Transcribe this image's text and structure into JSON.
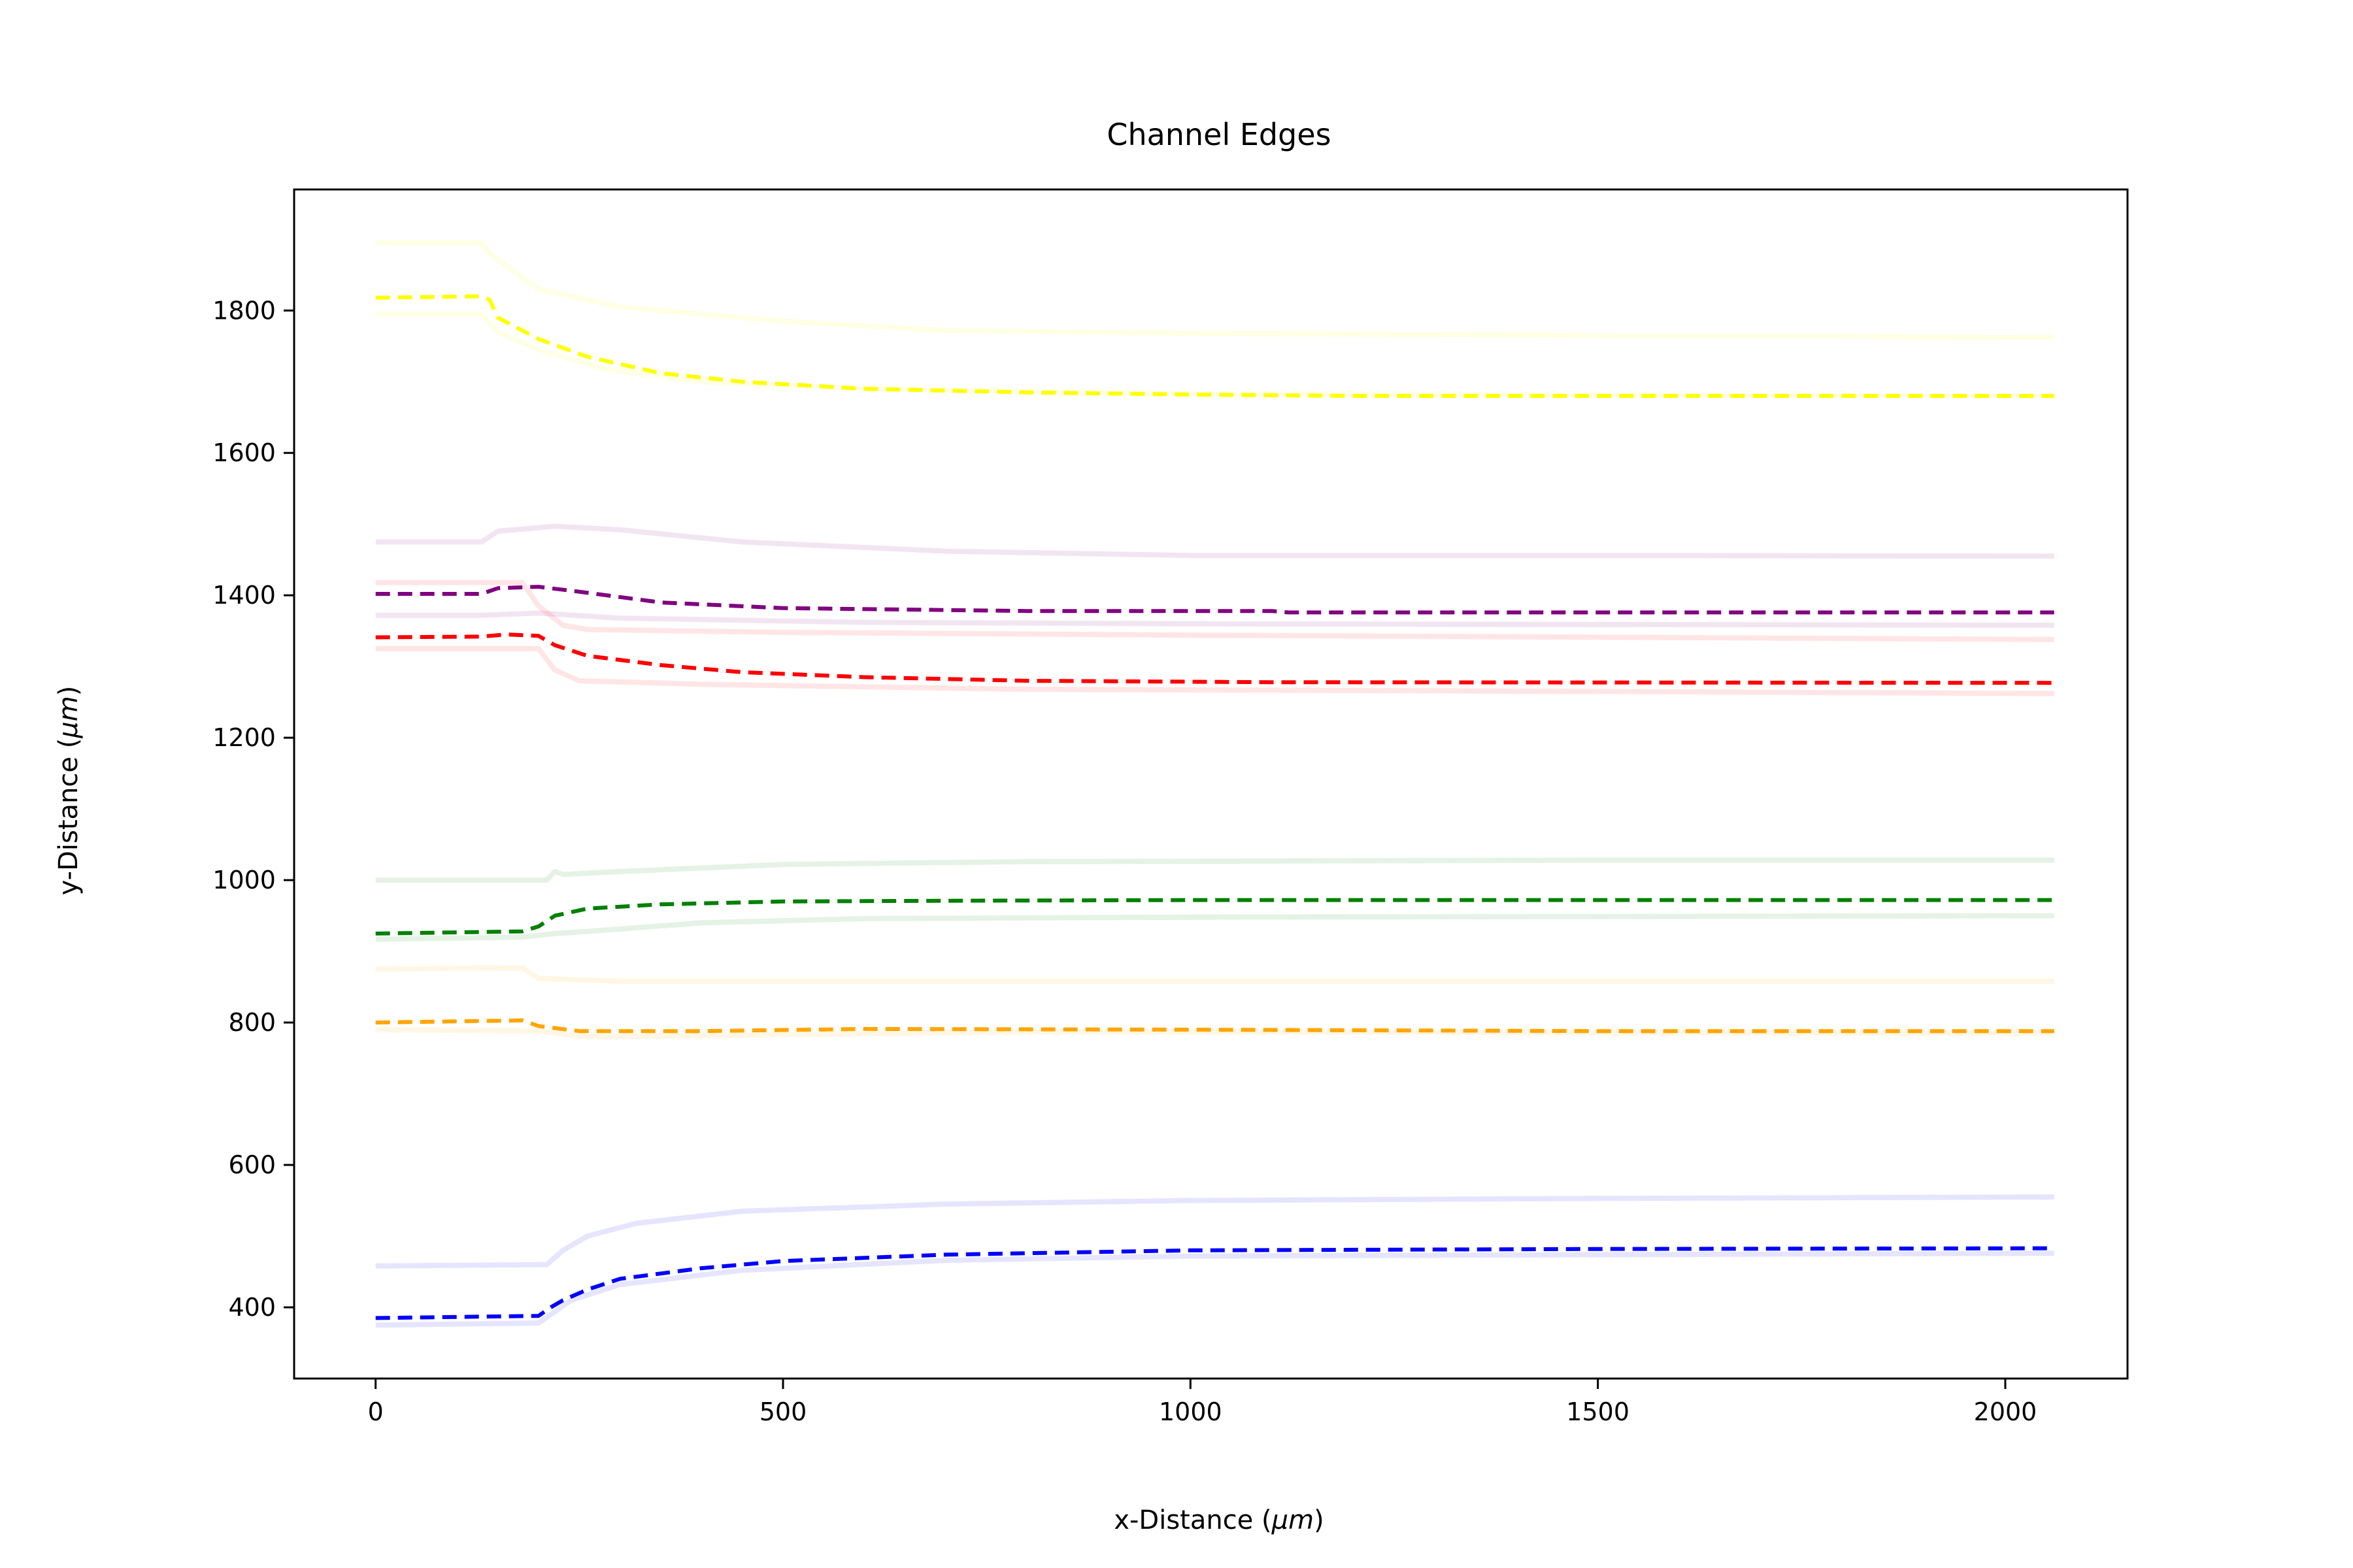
{
  "chart_data": {
    "type": "line",
    "title": "Channel Edges",
    "xlabel": {
      "prefix": "x-Distance (",
      "unit": "μm",
      "suffix": ")"
    },
    "ylabel": {
      "prefix": "y-Distance (",
      "unit": "μm",
      "suffix": ")"
    },
    "xlim": [
      -100,
      2150
    ],
    "ylim": [
      300,
      1970
    ],
    "xticks": [
      0,
      500,
      1000,
      1500,
      2000
    ],
    "yticks": [
      400,
      600,
      800,
      1000,
      1200,
      1400,
      1600,
      1800
    ],
    "grid": false,
    "legend": "none",
    "series": [
      {
        "color": "#ffff00",
        "center": [
          [
            0,
            1818
          ],
          [
            130,
            1820
          ],
          [
            140,
            1815
          ],
          [
            150,
            1790
          ],
          [
            200,
            1760
          ],
          [
            260,
            1735
          ],
          [
            350,
            1712
          ],
          [
            450,
            1700
          ],
          [
            600,
            1690
          ],
          [
            800,
            1685
          ],
          [
            1000,
            1682
          ],
          [
            1200,
            1680
          ],
          [
            1500,
            1680
          ],
          [
            2060,
            1680
          ]
        ],
        "upper": [
          [
            0,
            1895
          ],
          [
            130,
            1895
          ],
          [
            140,
            1880
          ],
          [
            200,
            1830
          ],
          [
            300,
            1805
          ],
          [
            500,
            1785
          ],
          [
            700,
            1772
          ],
          [
            1000,
            1768
          ],
          [
            1500,
            1765
          ],
          [
            2060,
            1762
          ]
        ],
        "lower": [
          [
            0,
            1795
          ],
          [
            130,
            1795
          ],
          [
            150,
            1770
          ],
          [
            200,
            1745
          ],
          [
            280,
            1718
          ],
          [
            400,
            1700
          ],
          [
            600,
            1690
          ],
          [
            1000,
            1683
          ],
          [
            2060,
            1680
          ]
        ]
      },
      {
        "color": "#800080",
        "center": [
          [
            0,
            1402
          ],
          [
            130,
            1402
          ],
          [
            150,
            1410
          ],
          [
            200,
            1412
          ],
          [
            250,
            1405
          ],
          [
            350,
            1390
          ],
          [
            500,
            1382
          ],
          [
            800,
            1378
          ],
          [
            1100,
            1378
          ],
          [
            1120,
            1376
          ],
          [
            2060,
            1376
          ]
        ],
        "upper": [
          [
            0,
            1475
          ],
          [
            130,
            1475
          ],
          [
            150,
            1490
          ],
          [
            220,
            1497
          ],
          [
            300,
            1492
          ],
          [
            450,
            1475
          ],
          [
            700,
            1462
          ],
          [
            1000,
            1456
          ],
          [
            1500,
            1456
          ],
          [
            2060,
            1455
          ]
        ],
        "lower": [
          [
            0,
            1372
          ],
          [
            130,
            1372
          ],
          [
            200,
            1375
          ],
          [
            300,
            1368
          ],
          [
            600,
            1362
          ],
          [
            1000,
            1360
          ],
          [
            2060,
            1358
          ]
        ]
      },
      {
        "color": "#ff0000",
        "center": [
          [
            0,
            1341
          ],
          [
            130,
            1342
          ],
          [
            160,
            1345
          ],
          [
            200,
            1343
          ],
          [
            220,
            1330
          ],
          [
            260,
            1315
          ],
          [
            350,
            1302
          ],
          [
            450,
            1292
          ],
          [
            600,
            1285
          ],
          [
            800,
            1280
          ],
          [
            1100,
            1278
          ],
          [
            2060,
            1277
          ]
        ],
        "upper": [
          [
            0,
            1418
          ],
          [
            180,
            1418
          ],
          [
            200,
            1385
          ],
          [
            230,
            1358
          ],
          [
            260,
            1352
          ],
          [
            500,
            1348
          ],
          [
            1000,
            1344
          ],
          [
            2060,
            1338
          ]
        ],
        "lower": [
          [
            0,
            1325
          ],
          [
            200,
            1325
          ],
          [
            220,
            1295
          ],
          [
            250,
            1280
          ],
          [
            400,
            1275
          ],
          [
            800,
            1268
          ],
          [
            1500,
            1265
          ],
          [
            2060,
            1262
          ]
        ]
      },
      {
        "color": "#008000",
        "center": [
          [
            0,
            925
          ],
          [
            180,
            928
          ],
          [
            200,
            935
          ],
          [
            220,
            950
          ],
          [
            260,
            960
          ],
          [
            350,
            966
          ],
          [
            500,
            970
          ],
          [
            700,
            971
          ],
          [
            1000,
            972
          ],
          [
            2060,
            972
          ]
        ],
        "upper": [
          [
            0,
            1000
          ],
          [
            210,
            1000
          ],
          [
            220,
            1012
          ],
          [
            230,
            1008
          ],
          [
            300,
            1012
          ],
          [
            500,
            1022
          ],
          [
            800,
            1026
          ],
          [
            1500,
            1028
          ],
          [
            2060,
            1028
          ]
        ],
        "lower": [
          [
            0,
            917
          ],
          [
            180,
            920
          ],
          [
            220,
            925
          ],
          [
            260,
            928
          ],
          [
            400,
            940
          ],
          [
            600,
            946
          ],
          [
            1000,
            948
          ],
          [
            2060,
            950
          ]
        ]
      },
      {
        "color": "#ffa500",
        "center": [
          [
            0,
            800
          ],
          [
            180,
            803
          ],
          [
            200,
            795
          ],
          [
            250,
            788
          ],
          [
            400,
            788
          ],
          [
            600,
            791
          ],
          [
            1000,
            790
          ],
          [
            1500,
            788
          ],
          [
            2060,
            788
          ]
        ],
        "upper": [
          [
            0,
            875
          ],
          [
            180,
            877
          ],
          [
            200,
            862
          ],
          [
            300,
            858
          ],
          [
            600,
            858
          ],
          [
            1000,
            858
          ],
          [
            2060,
            858
          ]
        ],
        "lower": [
          [
            0,
            790
          ],
          [
            200,
            788
          ],
          [
            260,
            780
          ],
          [
            500,
            783
          ],
          [
            800,
            787
          ],
          [
            2060,
            785
          ]
        ]
      },
      {
        "color": "#0000ff",
        "center": [
          [
            0,
            385
          ],
          [
            200,
            388
          ],
          [
            215,
            400
          ],
          [
            230,
            410
          ],
          [
            260,
            425
          ],
          [
            300,
            440
          ],
          [
            400,
            455
          ],
          [
            500,
            465
          ],
          [
            700,
            474
          ],
          [
            1000,
            480
          ],
          [
            1500,
            482
          ],
          [
            2060,
            483
          ]
        ],
        "upper": [
          [
            0,
            458
          ],
          [
            210,
            460
          ],
          [
            230,
            480
          ],
          [
            260,
            500
          ],
          [
            320,
            518
          ],
          [
            450,
            535
          ],
          [
            700,
            545
          ],
          [
            1000,
            550
          ],
          [
            1500,
            553
          ],
          [
            2060,
            555
          ]
        ],
        "lower": [
          [
            0,
            375
          ],
          [
            200,
            378
          ],
          [
            240,
            410
          ],
          [
            300,
            432
          ],
          [
            450,
            452
          ],
          [
            700,
            466
          ],
          [
            1000,
            472
          ],
          [
            2060,
            476
          ]
        ]
      }
    ]
  }
}
